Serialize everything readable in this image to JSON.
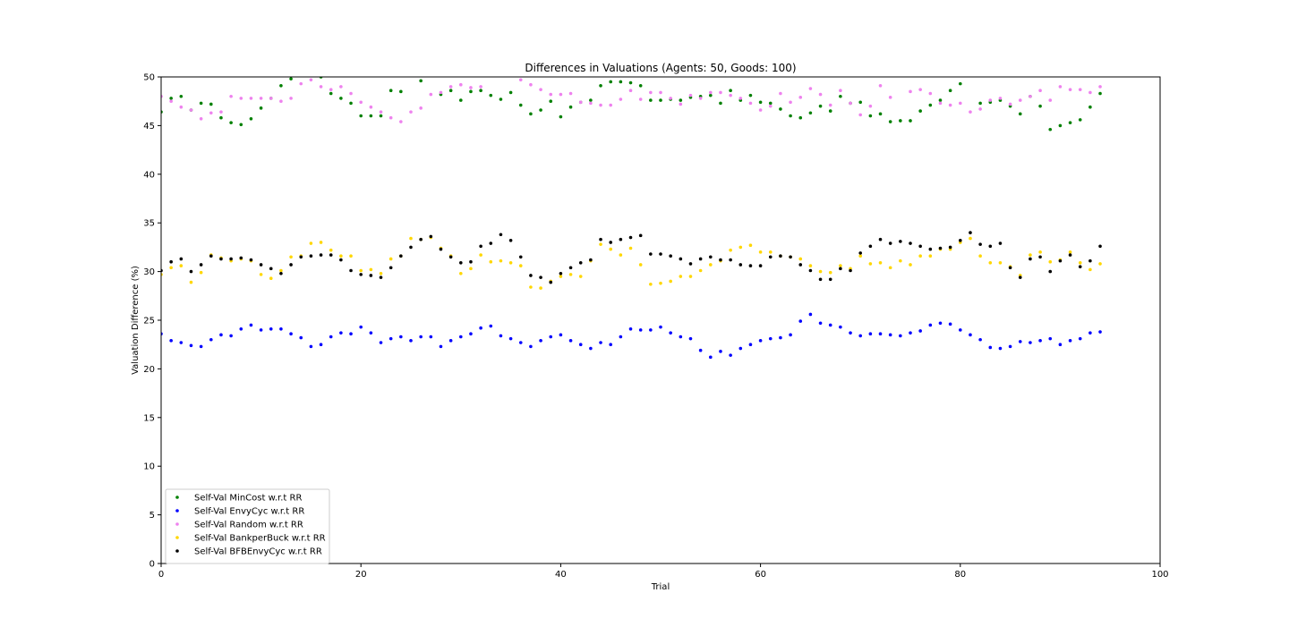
{
  "chart_data": {
    "type": "scatter",
    "title": "Differences in Valuations (Agents: 50, Goods: 100)",
    "xlabel": "Trial",
    "ylabel": "Valuation Difference (%)",
    "xlim": [
      0,
      100
    ],
    "ylim": [
      0,
      50
    ],
    "xticks": [
      0,
      20,
      40,
      60,
      80,
      100
    ],
    "yticks": [
      0,
      5,
      10,
      15,
      20,
      25,
      30,
      35,
      40,
      45,
      50
    ],
    "grid": false,
    "legend_position": "lower-left",
    "x": [
      0,
      1,
      2,
      3,
      4,
      5,
      6,
      7,
      8,
      9,
      10,
      11,
      12,
      13,
      14,
      15,
      16,
      17,
      18,
      19,
      20,
      21,
      22,
      23,
      24,
      25,
      26,
      27,
      28,
      29,
      30,
      31,
      32,
      33,
      34,
      35,
      36,
      37,
      38,
      39,
      40,
      41,
      42,
      43,
      44,
      45,
      46,
      47,
      48,
      49,
      50,
      51,
      52,
      53,
      54,
      55,
      56,
      57,
      58,
      59,
      60,
      61,
      62,
      63,
      64,
      65,
      66,
      67,
      68,
      69,
      70,
      71,
      72,
      73,
      74,
      75,
      76,
      77,
      78,
      79,
      80,
      81,
      82,
      83,
      84,
      85,
      86,
      87,
      88,
      89,
      90,
      91,
      92,
      93,
      94
    ],
    "series": [
      {
        "name": "Self-Val MinCost w.r.t RR",
        "color": "#008000",
        "values": [
          46.4,
          47.8,
          48.0,
          46.6,
          47.3,
          47.2,
          45.8,
          45.3,
          45.1,
          45.7,
          46.8,
          47.8,
          49.1,
          49.8,
          50.4,
          50.5,
          50.0,
          48.3,
          47.8,
          47.3,
          46.0,
          46.0,
          46.0,
          48.6,
          48.5,
          50.2,
          49.6,
          50.3,
          48.2,
          48.6,
          47.6,
          48.5,
          48.6,
          48.1,
          47.7,
          48.4,
          47.1,
          46.2,
          46.6,
          47.5,
          45.9,
          46.9,
          47.4,
          47.6,
          49.1,
          49.5,
          49.5,
          49.4,
          49.1,
          47.6,
          47.6,
          47.7,
          47.6,
          47.9,
          48.0,
          48.1,
          47.3,
          48.6,
          47.6,
          48.1,
          47.4,
          47.3,
          46.7,
          46.0,
          45.8,
          46.3,
          47.0,
          46.5,
          48.0,
          47.3,
          47.4,
          46.0,
          46.2,
          45.4,
          45.5,
          45.5,
          46.5,
          47.1,
          47.6,
          48.6,
          49.3,
          50.2,
          47.3,
          47.4,
          47.6,
          47.0,
          46.2,
          48.0,
          47.0,
          44.6,
          45.0,
          45.3,
          45.6,
          46.9,
          48.3
        ]
      },
      {
        "name": "Self-Val EnvyCyc w.r.t RR",
        "color": "#0000ff",
        "values": [
          23.6,
          22.9,
          22.7,
          22.4,
          22.3,
          23.0,
          23.5,
          23.4,
          24.1,
          24.5,
          24.0,
          24.1,
          24.1,
          23.6,
          23.2,
          22.3,
          22.5,
          23.3,
          23.7,
          23.6,
          24.3,
          23.7,
          22.7,
          23.1,
          23.3,
          22.9,
          23.3,
          23.3,
          22.3,
          22.9,
          23.3,
          23.6,
          24.2,
          24.4,
          23.4,
          23.1,
          22.7,
          22.3,
          22.9,
          23.3,
          23.5,
          22.9,
          22.5,
          22.1,
          22.7,
          22.5,
          23.3,
          24.1,
          24.0,
          24.0,
          24.3,
          23.7,
          23.3,
          23.1,
          21.9,
          21.2,
          21.8,
          21.4,
          22.1,
          22.5,
          22.9,
          23.1,
          23.2,
          23.5,
          24.9,
          25.6,
          24.7,
          24.5,
          24.3,
          23.7,
          23.4,
          23.6,
          23.6,
          23.5,
          23.4,
          23.7,
          23.9,
          24.5,
          24.7,
          24.6,
          24.0,
          23.5,
          23.0,
          22.2,
          22.1,
          22.3,
          22.8,
          22.7,
          22.9,
          23.1,
          22.5,
          22.9,
          23.1,
          23.7,
          23.8
        ]
      },
      {
        "name": "Self-Val Random w.r.t RR",
        "color": "#ee82ee",
        "values": [
          48.0,
          47.5,
          46.9,
          46.6,
          45.7,
          46.3,
          46.4,
          48.0,
          47.8,
          47.8,
          47.8,
          47.8,
          47.5,
          47.8,
          49.3,
          49.7,
          49.0,
          48.7,
          49.0,
          48.3,
          47.4,
          46.9,
          46.4,
          45.8,
          45.4,
          46.4,
          46.8,
          48.2,
          48.4,
          49.0,
          49.2,
          48.9,
          49.0,
          50.2,
          51.0,
          50.6,
          49.7,
          49.2,
          48.7,
          48.2,
          48.2,
          48.3,
          47.4,
          47.3,
          47.1,
          47.1,
          47.7,
          48.6,
          47.7,
          48.4,
          48.4,
          47.8,
          47.2,
          48.1,
          47.8,
          48.4,
          48.4,
          48.1,
          47.8,
          47.3,
          46.6,
          47.0,
          48.3,
          47.4,
          47.9,
          48.8,
          48.2,
          47.1,
          48.6,
          47.3,
          46.1,
          47.0,
          49.1,
          47.9,
          50.2,
          48.5,
          48.7,
          48.3,
          47.3,
          47.1,
          47.3,
          46.4,
          46.7,
          47.6,
          47.8,
          47.2,
          47.6,
          48.0,
          48.6,
          47.6,
          49.0,
          48.7,
          48.7,
          48.4,
          49.0
        ]
      },
      {
        "name": "Self-Val BankperBuck w.r.t RR",
        "color": "#ffd700",
        "values": [
          29.7,
          30.4,
          30.6,
          28.9,
          29.9,
          31.7,
          31.4,
          31.1,
          31.3,
          31.1,
          29.7,
          29.3,
          30.1,
          31.5,
          31.6,
          32.9,
          33.0,
          32.2,
          31.6,
          31.6,
          30.1,
          30.2,
          29.8,
          31.3,
          31.6,
          33.4,
          33.3,
          33.5,
          32.4,
          31.6,
          29.8,
          30.3,
          31.7,
          31.0,
          31.1,
          30.9,
          30.6,
          28.4,
          28.3,
          29.0,
          29.5,
          29.7,
          29.5,
          31.1,
          32.8,
          32.3,
          31.7,
          32.4,
          30.7,
          28.7,
          28.8,
          29.0,
          29.5,
          29.5,
          30.1,
          30.7,
          31.1,
          32.2,
          32.5,
          32.7,
          32.0,
          32.0,
          31.6,
          31.5,
          31.3,
          30.6,
          30.0,
          29.9,
          30.6,
          30.3,
          31.6,
          30.8,
          30.9,
          30.4,
          31.1,
          30.7,
          31.6,
          31.6,
          32.3,
          32.3,
          33.0,
          33.4,
          31.6,
          30.9,
          30.9,
          30.5,
          29.6,
          31.7,
          32.0,
          31.0,
          31.2,
          32.0,
          30.9,
          30.2,
          30.8
        ]
      },
      {
        "name": "Self-Val BFBEnvyCyc w.r.t RR",
        "color": "#000000",
        "values": [
          30.1,
          31.0,
          31.3,
          30.0,
          30.7,
          31.6,
          31.3,
          31.3,
          31.4,
          31.2,
          30.7,
          30.3,
          29.8,
          30.7,
          31.5,
          31.6,
          31.7,
          31.7,
          31.2,
          30.1,
          29.7,
          29.6,
          29.4,
          30.4,
          31.6,
          32.5,
          33.3,
          33.6,
          32.3,
          31.5,
          30.9,
          31.0,
          32.6,
          32.9,
          33.8,
          33.2,
          31.5,
          29.6,
          29.4,
          28.9,
          29.8,
          30.4,
          30.9,
          31.2,
          33.3,
          33.0,
          33.3,
          33.5,
          33.7,
          31.8,
          31.8,
          31.6,
          31.3,
          30.8,
          31.3,
          31.5,
          31.2,
          31.2,
          30.7,
          30.6,
          30.6,
          31.5,
          31.6,
          31.5,
          30.7,
          30.1,
          29.2,
          29.2,
          30.3,
          30.1,
          31.9,
          32.6,
          33.3,
          32.9,
          33.1,
          32.9,
          32.6,
          32.3,
          32.4,
          32.5,
          33.2,
          34.0,
          32.8,
          32.6,
          32.9,
          30.4,
          29.4,
          31.3,
          31.5,
          30.0,
          31.1,
          31.7,
          30.5,
          31.1,
          32.6
        ]
      }
    ]
  }
}
